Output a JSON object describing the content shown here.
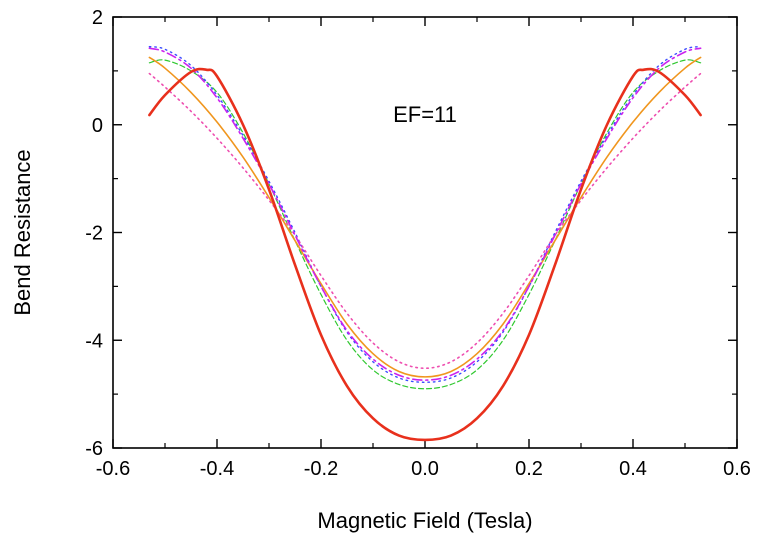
{
  "chart_data": {
    "type": "line",
    "xlabel": "Magnetic Field (Tesla)",
    "ylabel": "Bend Resistance",
    "xlim": [
      -0.6,
      0.6
    ],
    "ylim": [
      -6,
      2
    ],
    "xticks": [
      -0.6,
      -0.4,
      -0.2,
      0.0,
      0.2,
      0.4,
      0.6
    ],
    "xtick_labels": [
      "-0.6",
      "-0.4",
      "-0.2",
      "0.0",
      "0.2",
      "0.4",
      "0.6"
    ],
    "yticks": [
      -6,
      -4,
      -2,
      0,
      2
    ],
    "ytick_labels": [
      "-6",
      "-4",
      "-2",
      "0",
      "2"
    ],
    "annotation": "EF=11",
    "grid": false,
    "series": [
      {
        "color": "#e8301c",
        "style": "solid",
        "width": 2.6,
        "x": [
          -0.53,
          -0.5,
          -0.45,
          -0.42,
          -0.4,
          -0.35,
          -0.3,
          -0.25,
          -0.2,
          -0.15,
          -0.1,
          -0.05,
          0.0,
          0.05,
          0.1,
          0.15,
          0.2,
          0.25,
          0.3,
          0.35,
          0.4,
          0.42,
          0.45,
          0.5,
          0.53
        ],
        "y": [
          0.18,
          0.55,
          0.98,
          1.02,
          0.9,
          0.0,
          -1.2,
          -2.6,
          -3.9,
          -4.85,
          -5.45,
          -5.77,
          -5.85,
          -5.77,
          -5.45,
          -4.85,
          -3.9,
          -2.6,
          -1.2,
          0.0,
          0.9,
          1.02,
          0.98,
          0.55,
          0.18
        ]
      },
      {
        "color": "#f0961e",
        "style": "solid",
        "width": 1.6,
        "x": [
          -0.53,
          -0.5,
          -0.45,
          -0.4,
          -0.35,
          -0.3,
          -0.25,
          -0.2,
          -0.15,
          -0.1,
          -0.05,
          0.0,
          0.05,
          0.1,
          0.15,
          0.2,
          0.25,
          0.3,
          0.35,
          0.4,
          0.45,
          0.5,
          0.53
        ],
        "y": [
          1.25,
          1.05,
          0.6,
          0.05,
          -0.6,
          -1.35,
          -2.15,
          -2.95,
          -3.7,
          -4.25,
          -4.58,
          -4.68,
          -4.58,
          -4.25,
          -3.7,
          -2.95,
          -2.15,
          -1.35,
          -0.6,
          0.05,
          0.6,
          1.05,
          1.25
        ]
      },
      {
        "color": "#ee4fb0",
        "style": "dotted",
        "width": 1.6,
        "x": [
          -0.53,
          -0.5,
          -0.45,
          -0.4,
          -0.35,
          -0.3,
          -0.25,
          -0.2,
          -0.15,
          -0.1,
          -0.05,
          0.0,
          0.05,
          0.1,
          0.15,
          0.2,
          0.25,
          0.3,
          0.35,
          0.4,
          0.45,
          0.5,
          0.53
        ],
        "y": [
          0.95,
          0.7,
          0.25,
          -0.25,
          -0.8,
          -1.4,
          -2.05,
          -2.8,
          -3.5,
          -4.05,
          -4.4,
          -4.52,
          -4.4,
          -4.05,
          -3.5,
          -2.8,
          -2.05,
          -1.4,
          -0.8,
          -0.25,
          0.25,
          0.7,
          0.95
        ]
      },
      {
        "color": "#30c830",
        "style": "dashed",
        "width": 1.2,
        "x": [
          -0.53,
          -0.5,
          -0.45,
          -0.4,
          -0.35,
          -0.3,
          -0.25,
          -0.2,
          -0.15,
          -0.1,
          -0.05,
          0.0,
          0.05,
          0.1,
          0.15,
          0.2,
          0.25,
          0.3,
          0.35,
          0.4,
          0.45,
          0.5,
          0.53
        ],
        "y": [
          1.15,
          1.2,
          1.0,
          0.6,
          -0.15,
          -1.1,
          -2.15,
          -3.15,
          -4.0,
          -4.55,
          -4.82,
          -4.9,
          -4.82,
          -4.55,
          -4.0,
          -3.15,
          -2.15,
          -1.1,
          -0.15,
          0.6,
          1.0,
          1.2,
          1.15
        ]
      },
      {
        "color": "#3a4cff",
        "style": "dotted",
        "width": 1.4,
        "x": [
          -0.53,
          -0.5,
          -0.45,
          -0.4,
          -0.35,
          -0.3,
          -0.25,
          -0.2,
          -0.15,
          -0.1,
          -0.05,
          0.0,
          0.05,
          0.1,
          0.15,
          0.2,
          0.25,
          0.3,
          0.35,
          0.4,
          0.45,
          0.5,
          0.53
        ],
        "y": [
          1.45,
          1.4,
          1.1,
          0.55,
          -0.2,
          -1.05,
          -2.0,
          -3.0,
          -3.85,
          -4.4,
          -4.7,
          -4.78,
          -4.7,
          -4.4,
          -3.85,
          -3.0,
          -2.0,
          -1.05,
          -0.2,
          0.55,
          1.1,
          1.4,
          1.45
        ]
      },
      {
        "color": "#cc22ee",
        "style": "dashdot",
        "width": 1.6,
        "x": [
          -0.53,
          -0.5,
          -0.45,
          -0.4,
          -0.35,
          -0.3,
          -0.25,
          -0.2,
          -0.15,
          -0.1,
          -0.05,
          0.0,
          0.05,
          0.1,
          0.15,
          0.2,
          0.25,
          0.3,
          0.35,
          0.4,
          0.45,
          0.5,
          0.53
        ],
        "y": [
          1.42,
          1.35,
          1.05,
          0.5,
          -0.25,
          -1.1,
          -2.05,
          -3.0,
          -3.82,
          -4.35,
          -4.65,
          -4.74,
          -4.65,
          -4.35,
          -3.82,
          -3.0,
          -2.05,
          -1.1,
          -0.25,
          0.5,
          1.05,
          1.35,
          1.42
        ]
      }
    ]
  }
}
